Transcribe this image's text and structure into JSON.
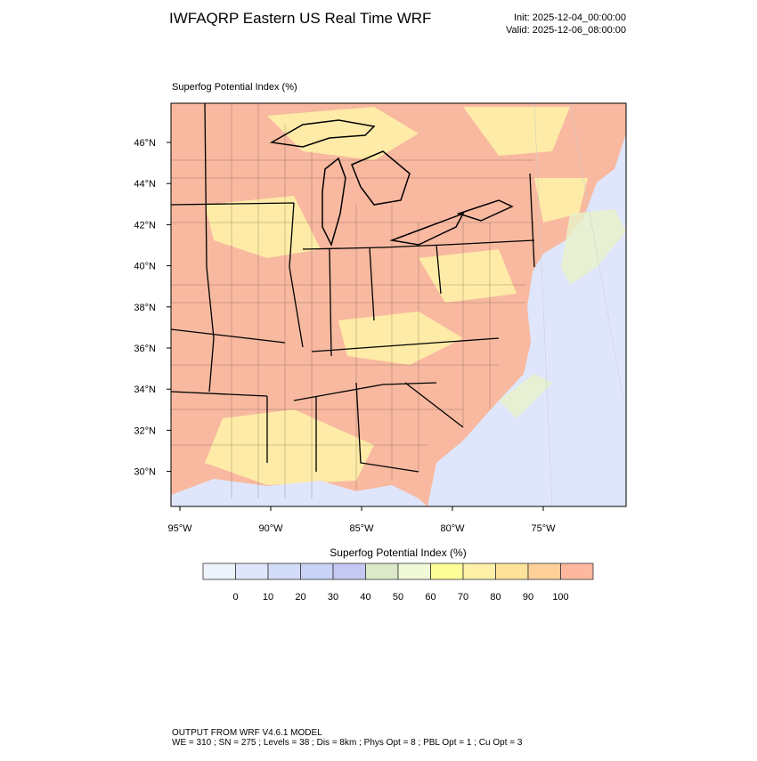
{
  "header": {
    "title": "IWFAQRP Eastern US Real Time WRF",
    "init": "Init: 2025-12-04_00:00:00",
    "valid": "Valid: 2025-12-06_08:00:00"
  },
  "map": {
    "title": "Superfog Potential Index   (%)",
    "lat_ticks": [
      {
        "value": 46,
        "label": "46°N"
      },
      {
        "value": 44,
        "label": "44°N"
      },
      {
        "value": 42,
        "label": "42°N"
      },
      {
        "value": 40,
        "label": "40°N"
      },
      {
        "value": 38,
        "label": "38°N"
      },
      {
        "value": 36,
        "label": "36°N"
      },
      {
        "value": 34,
        "label": "34°N"
      },
      {
        "value": 32,
        "label": "32°N"
      },
      {
        "value": 30,
        "label": "30°N"
      }
    ],
    "lon_ticks": [
      {
        "value": -95,
        "label": "95°W"
      },
      {
        "value": -90,
        "label": "90°W"
      },
      {
        "value": -85,
        "label": "85°W"
      },
      {
        "value": -80,
        "label": "80°W"
      },
      {
        "value": -75,
        "label": "75°W"
      }
    ]
  },
  "colorbar": {
    "title": "Superfog Potential Index  (%)",
    "colors": [
      "#eef2fa",
      "#dfe6fb",
      "#d2dcf8",
      "#c9d3f5",
      "#c5c8f2",
      "#dce8c8",
      "#f0fad8",
      "#ffff9a",
      "#fff0a8",
      "#ffe29a",
      "#ffd09a",
      "#ffb8a0"
    ],
    "ticks": [
      0,
      10,
      20,
      30,
      40,
      50,
      60,
      70,
      80,
      90,
      100
    ]
  },
  "footer": {
    "line1": "OUTPUT FROM WRF V4.6.1 MODEL",
    "line2": "WE = 310 ; SN = 275 ; Levels = 38 ; Dis = 8km ; Phys Opt = 8 ; PBL Opt = 1 ; Cu Opt = 3"
  }
}
